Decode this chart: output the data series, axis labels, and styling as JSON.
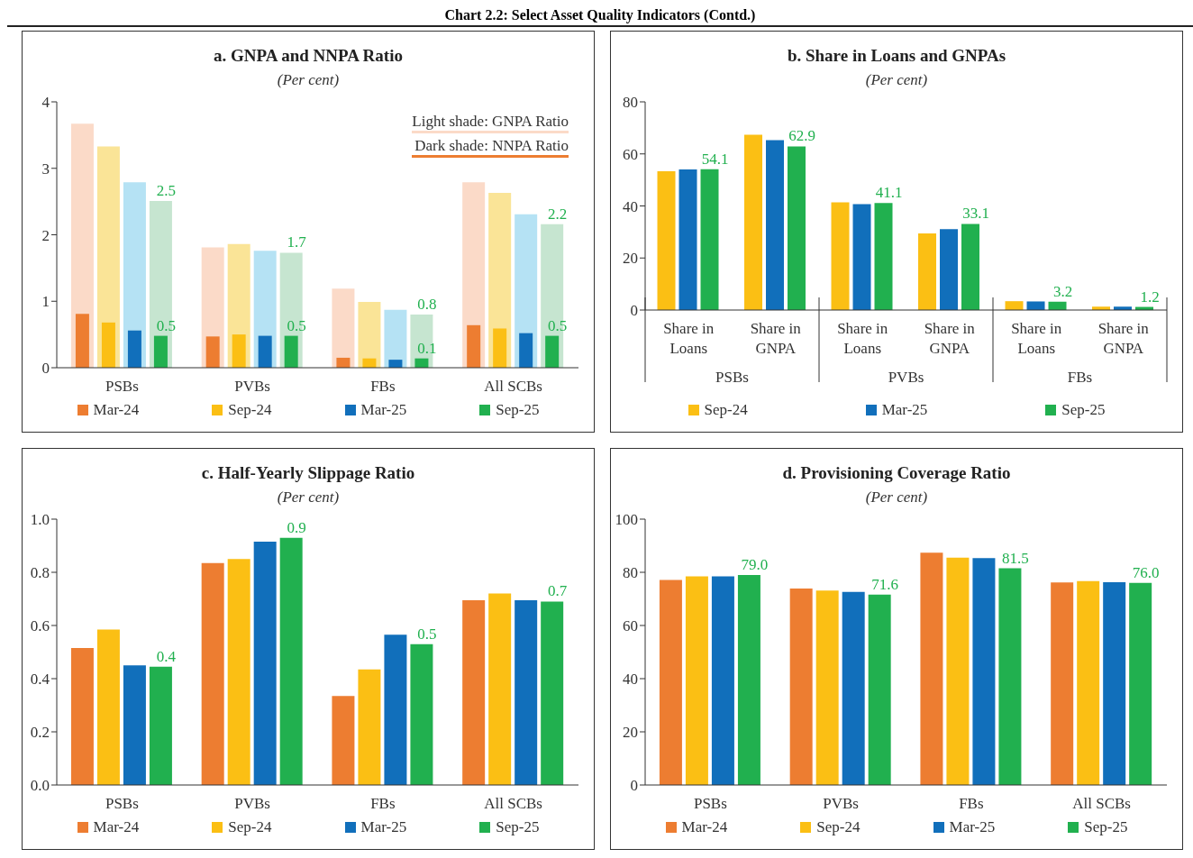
{
  "chart_data": [
    {
      "type": "other",
      "title": "Chart 2.2: Select Asset Quality Indicators (Contd.)"
    },
    {
      "type": "bar",
      "title": "a. GNPA and NNPA Ratio",
      "subtitle": "(Per cent)",
      "categories": [
        "PSBs",
        "PVBs",
        "FBs",
        "All SCBs"
      ],
      "series": [
        {
          "color": "#fbdac8",
          "values": [
            3.67,
            1.81,
            1.19,
            2.79
          ]
        },
        {
          "color": "#fae497",
          "values": [
            3.33,
            1.86,
            0.99,
            2.63
          ]
        },
        {
          "color": "#b5e2f4",
          "values": [
            2.79,
            1.76,
            0.87,
            2.31
          ]
        },
        {
          "color": "#c6e5d0",
          "values": [
            2.51,
            1.73,
            0.8,
            2.16
          ],
          "value_labels": [
            "2.5",
            "1.7",
            "0.8",
            "2.2"
          ]
        },
        {
          "name": "Mar-24",
          "color": "#ed7d31",
          "values": [
            0.81,
            0.47,
            0.15,
            0.64
          ]
        },
        {
          "name": "Sep-24",
          "color": "#fbbf14",
          "values": [
            0.68,
            0.5,
            0.14,
            0.59
          ]
        },
        {
          "name": "Mar-25",
          "color": "#116fbb",
          "values": [
            0.56,
            0.48,
            0.12,
            0.52
          ]
        },
        {
          "name": "Sep-25",
          "color": "#21b04f",
          "values": [
            0.48,
            0.48,
            0.14,
            0.48
          ],
          "value_labels": [
            "0.5",
            "0.5",
            "0.1",
            "0.5"
          ]
        }
      ],
      "annotations": [
        "Light shade: GNPA Ratio",
        "Dark shade: NNPA Ratio"
      ],
      "ylim": [
        0,
        4
      ],
      "yticks": [
        0,
        1,
        2,
        3,
        4
      ],
      "grid": false,
      "legend": "bottom"
    },
    {
      "type": "bar",
      "title": "b. Share in Loans and GNPAs",
      "subtitle": "(Per cent)",
      "categories": [
        "Share in Loans",
        "Share in GNPA",
        "Share in Loans",
        "Share in GNPA",
        "Share in Loans",
        "Share in GNPA"
      ],
      "series": [
        {
          "name": "Sep-24",
          "color": "#fbbf14",
          "values": [
            53.3,
            67.4,
            41.4,
            29.4,
            3.4,
            1.3
          ]
        },
        {
          "name": "Mar-25",
          "color": "#116fbb",
          "values": [
            54.0,
            65.3,
            40.7,
            31.1,
            3.3,
            1.3
          ]
        },
        {
          "name": "Sep-25",
          "color": "#21b04f",
          "values": [
            54.1,
            62.9,
            41.1,
            33.1,
            3.2,
            1.2
          ],
          "value_labels": [
            "54.1",
            "62.9",
            "41.1",
            "33.1",
            "3.2",
            "1.2"
          ]
        }
      ],
      "annotations": [
        "PSBs",
        "PVBs",
        "FBs"
      ],
      "ylim": [
        0,
        80
      ],
      "yticks": [
        0,
        20,
        40,
        60,
        80
      ],
      "grid": false,
      "legend": "bottom"
    },
    {
      "type": "bar",
      "title": "c. Half-Yearly Slippage Ratio",
      "subtitle": "(Per cent)",
      "categories": [
        "PSBs",
        "PVBs",
        "FBs",
        "All SCBs"
      ],
      "series": [
        {
          "name": "Mar-24",
          "color": "#ed7d31",
          "values": [
            0.515,
            0.835,
            0.335,
            0.695
          ]
        },
        {
          "name": "Sep-24",
          "color": "#fbbf14",
          "values": [
            0.585,
            0.85,
            0.435,
            0.72
          ]
        },
        {
          "name": "Mar-25",
          "color": "#116fbb",
          "values": [
            0.45,
            0.915,
            0.565,
            0.695
          ]
        },
        {
          "name": "Sep-25",
          "color": "#21b04f",
          "values": [
            0.445,
            0.93,
            0.53,
            0.69
          ],
          "value_labels": [
            "0.4",
            "0.9",
            "0.5",
            "0.7"
          ]
        }
      ],
      "ylim": [
        0,
        1
      ],
      "yticks": [
        {
          "value": 0,
          "label": "0.0"
        },
        0.2,
        0.4,
        0.6,
        0.8,
        {
          "value": 1,
          "label": "1.0"
        }
      ],
      "grid": false,
      "legend": "bottom"
    },
    {
      "type": "bar",
      "title": "d. Provisioning Coverage Ratio",
      "subtitle": "(Per cent)",
      "categories": [
        "PSBs",
        "PVBs",
        "FBs",
        "All SCBs"
      ],
      "series": [
        {
          "name": "Mar-24",
          "color": "#ed7d31",
          "values": [
            77.1,
            73.9,
            87.4,
            76.2
          ]
        },
        {
          "name": "Sep-24",
          "color": "#fbbf14",
          "values": [
            78.5,
            73.1,
            85.5,
            76.7
          ]
        },
        {
          "name": "Mar-25",
          "color": "#116fbb",
          "values": [
            78.5,
            72.6,
            85.3,
            76.3
          ]
        },
        {
          "name": "Sep-25",
          "color": "#21b04f",
          "values": [
            79.0,
            71.6,
            81.5,
            76.0
          ],
          "value_labels": [
            "79.0",
            "71.6",
            "81.5",
            "76.0"
          ]
        }
      ],
      "ylim": [
        0,
        100
      ],
      "yticks": [
        0,
        20,
        40,
        60,
        80,
        100
      ],
      "grid": false,
      "legend": "bottom"
    }
  ]
}
